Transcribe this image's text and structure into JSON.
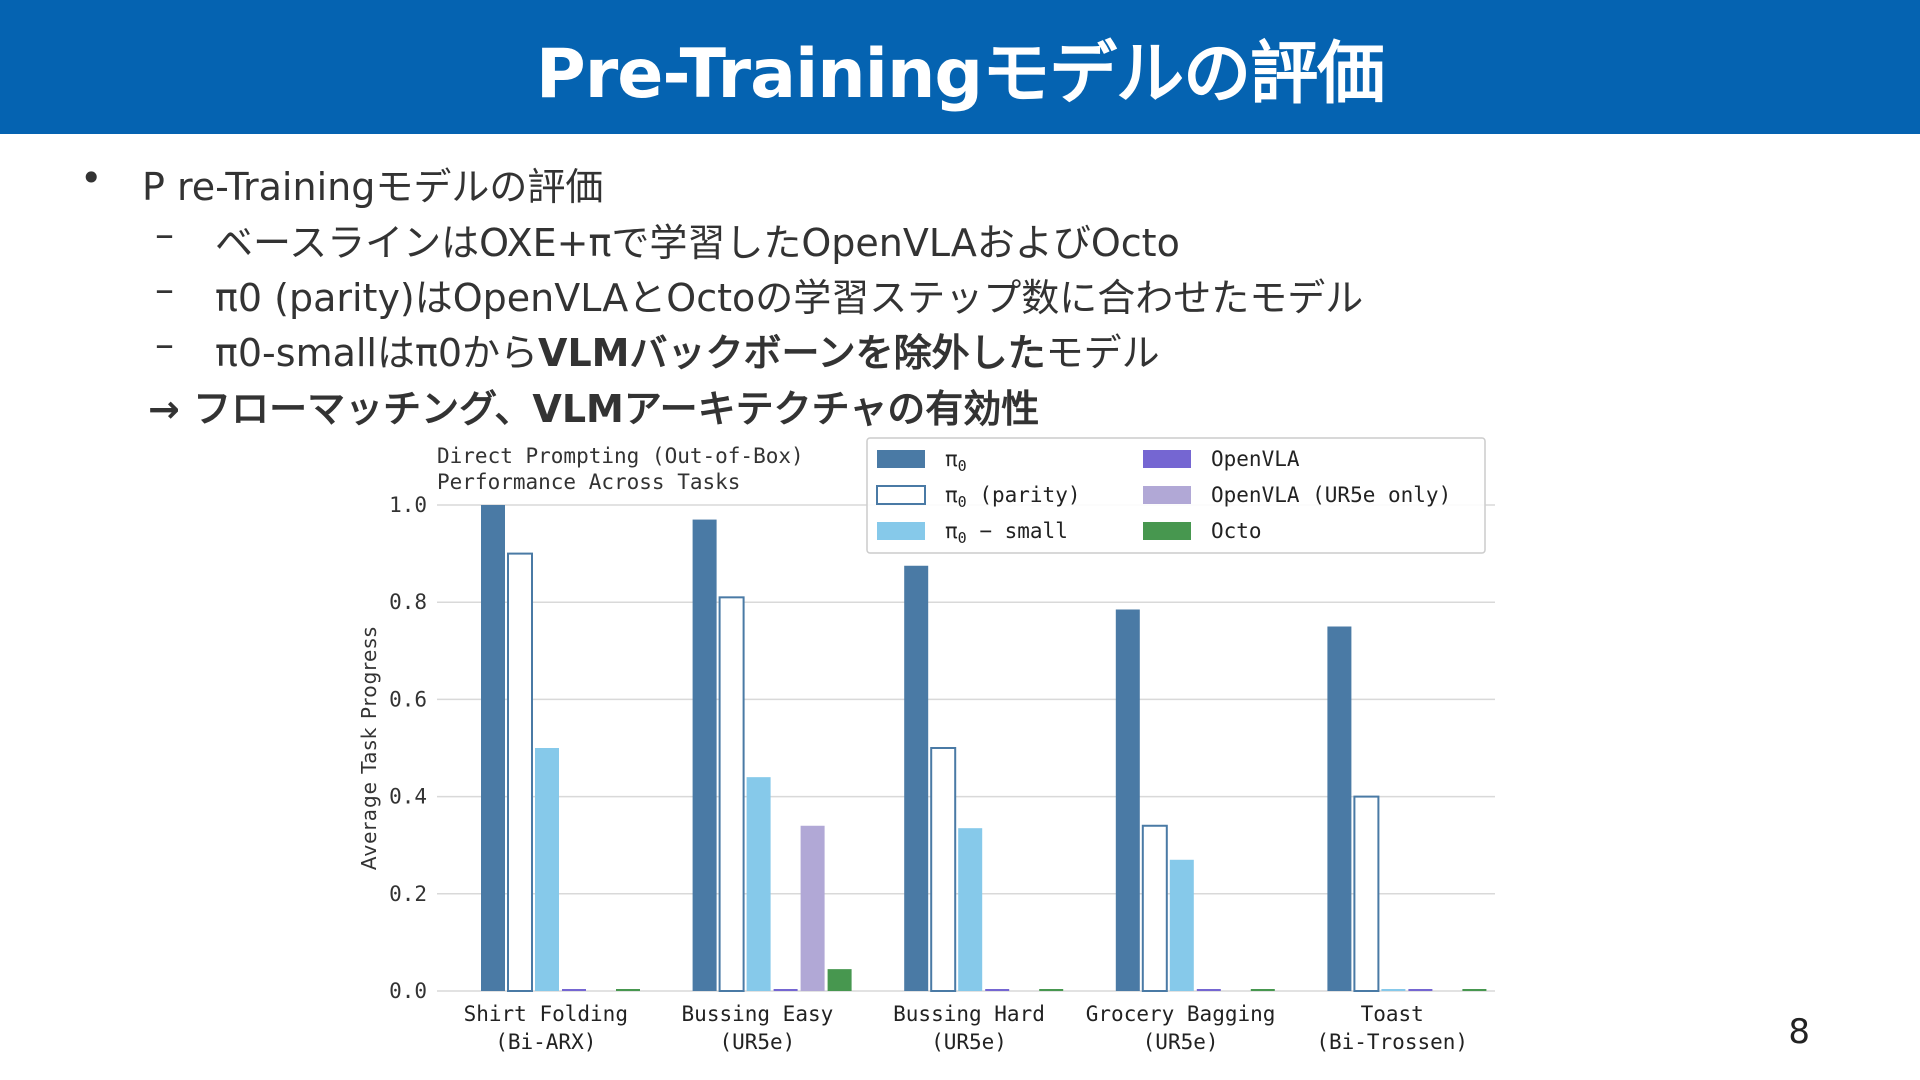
{
  "slide": {
    "title": "Pre-Trainingモデルの評価",
    "bullet_main": "P re-Trainingモデルの評価",
    "bullet_mark": "•",
    "dash": "–",
    "sub1": "ベースラインはOXE+πで学習したOpenVLAおよびOcto",
    "sub2": "π0 (parity)はOpenVLAとOctoの学習ステップ数に合わせたモデル",
    "sub3_pre": "π0-smallはπ0から",
    "sub3_bold": "VLMバックボーンを除外した",
    "sub3_post": "モデル",
    "arrow_line": "→ フローマッチング、VLMアーキテクチャの有効性",
    "page_number": "8"
  },
  "chart_data": {
    "type": "bar",
    "title": [
      "Direct Prompting (Out-of-Box)",
      "Performance Across Tasks"
    ],
    "ylabel": "Average Task Progress",
    "xlabel": "",
    "ylim": [
      0,
      1.0
    ],
    "yticks": [
      "0.0",
      "0.2",
      "0.4",
      "0.6",
      "0.8",
      "1.0"
    ],
    "grid": true,
    "legend_position": "top-right",
    "categories": [
      [
        "Shirt Folding",
        "(Bi-ARX)"
      ],
      [
        "Bussing Easy",
        "(UR5e)"
      ],
      [
        "Bussing Hard",
        "(UR5e)"
      ],
      [
        "Grocery Bagging",
        "(UR5e)"
      ],
      [
        "Toast",
        "(Bi-Trossen)"
      ]
    ],
    "series": [
      {
        "name": "π0",
        "name_base": "π",
        "name_sub": "0",
        "name_suffix": "",
        "color": "#4a7aa5",
        "outline": false,
        "values": [
          1.0,
          0.97,
          0.875,
          0.785,
          0.75
        ]
      },
      {
        "name": "π0 (parity)",
        "name_base": "π",
        "name_sub": "0",
        "name_suffix": " (parity)",
        "color": "#ffffff",
        "stroke": "#4a7aa5",
        "outline": true,
        "values": [
          0.9,
          0.81,
          0.5,
          0.34,
          0.4
        ]
      },
      {
        "name": "π0 − small",
        "name_base": "π",
        "name_sub": "0",
        "name_suffix": " − small",
        "color": "#86c9ea",
        "outline": false,
        "values": [
          0.5,
          0.44,
          0.335,
          0.27,
          0.0
        ]
      },
      {
        "name": "OpenVLA",
        "name_base": "OpenVLA",
        "name_sub": "",
        "name_suffix": "",
        "color": "#7566d2",
        "outline": false,
        "values": [
          0.0,
          0.0,
          0.0,
          0.0,
          0.0
        ]
      },
      {
        "name": "OpenVLA (UR5e only)",
        "name_base": "OpenVLA (UR5e only)",
        "name_sub": "",
        "name_suffix": "",
        "color": "#b1a8d6",
        "outline": false,
        "values": [
          null,
          0.34,
          null,
          null,
          null
        ]
      },
      {
        "name": "Octo",
        "name_base": "Octo",
        "name_sub": "",
        "name_suffix": "",
        "color": "#47974f",
        "outline": false,
        "values": [
          0.0,
          0.045,
          0.0,
          0.0,
          0.0
        ]
      }
    ]
  }
}
